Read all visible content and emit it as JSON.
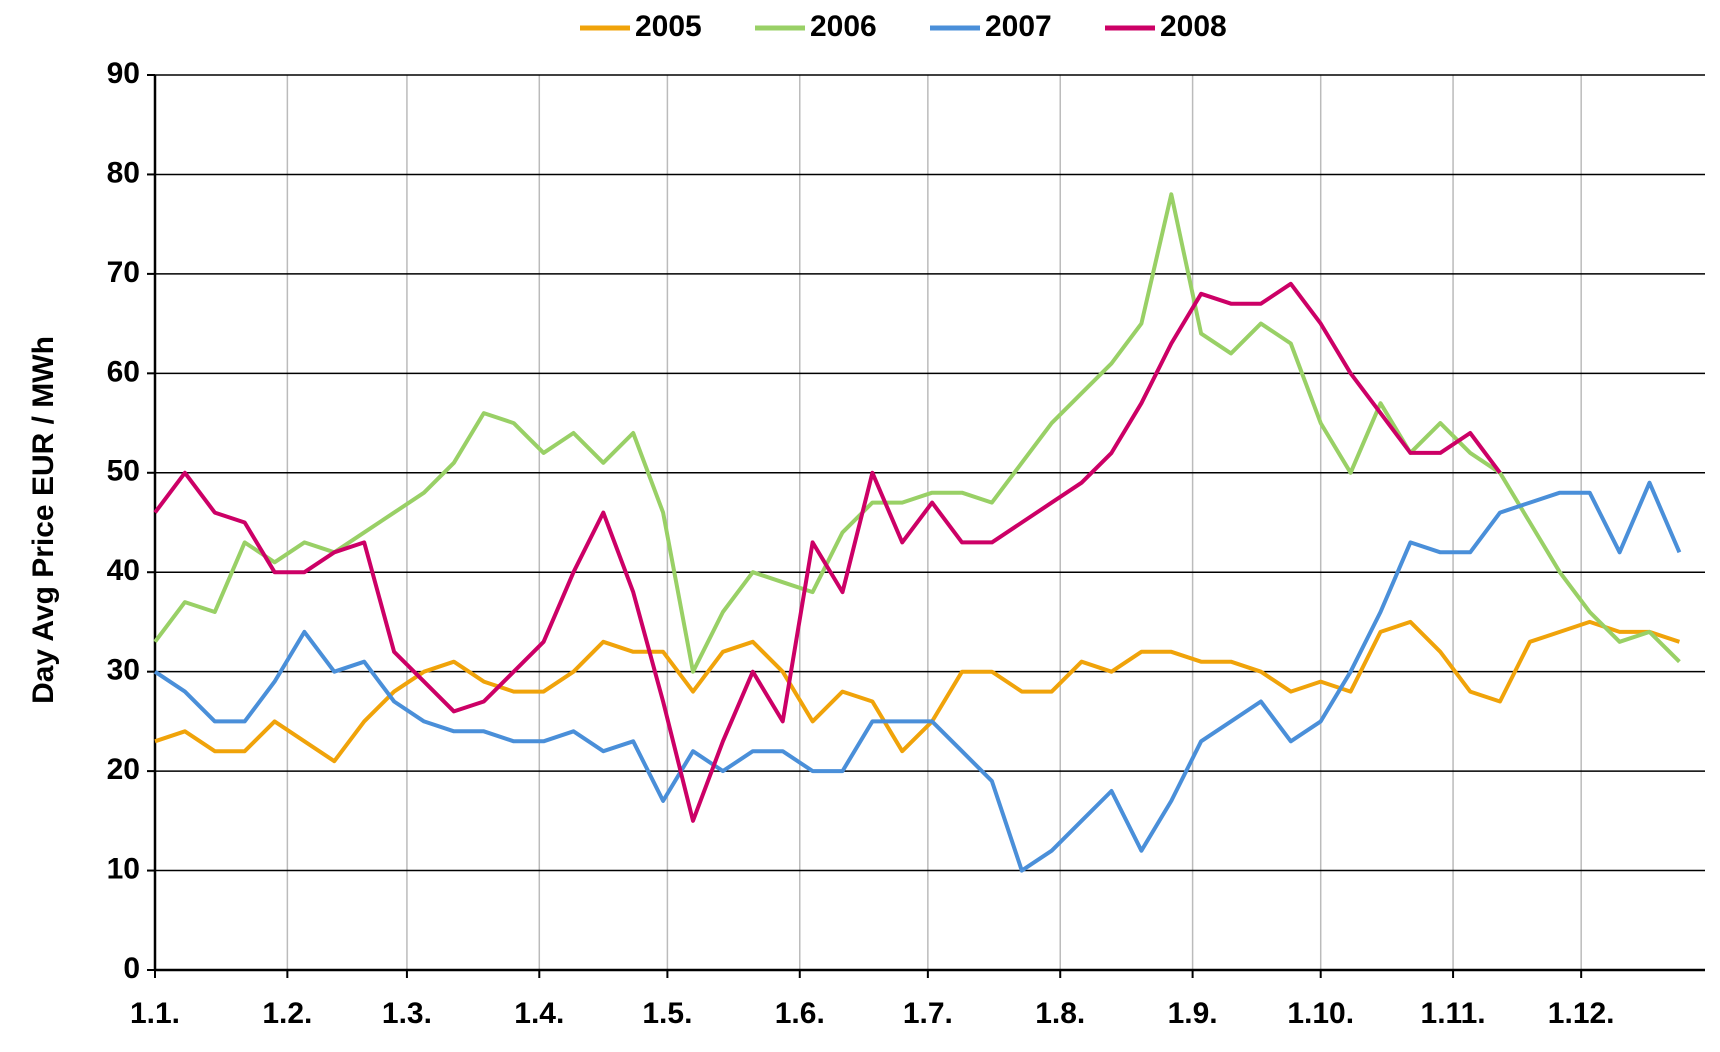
{
  "chart_data": {
    "type": "line",
    "ylabel": "Day Avg Price EUR / MWh",
    "x": [
      0,
      7,
      14,
      21,
      28,
      35,
      42,
      49,
      56,
      63,
      70,
      77,
      84,
      91,
      98,
      105,
      112,
      119,
      126,
      133,
      140,
      147,
      154,
      161,
      168,
      175,
      182,
      189,
      196,
      203,
      210,
      217,
      224,
      231,
      238,
      245,
      252,
      259,
      266,
      273,
      280,
      287,
      294,
      301,
      308,
      315,
      322,
      329,
      336,
      343,
      350,
      357
    ],
    "series": [
      {
        "name": "2005",
        "color": "#f0a30a",
        "values": [
          23,
          24,
          22,
          22,
          25,
          23,
          21,
          25,
          28,
          30,
          31,
          29,
          28,
          28,
          30,
          33,
          32,
          32,
          28,
          32,
          33,
          30,
          25,
          28,
          27,
          22,
          25,
          30,
          30,
          28,
          28,
          31,
          30,
          32,
          32,
          31,
          31,
          30,
          28,
          29,
          28,
          34,
          35,
          32,
          28,
          27,
          33,
          34,
          35,
          34,
          34,
          33
        ]
      },
      {
        "name": "2006",
        "color": "#99d066",
        "values": [
          33,
          37,
          36,
          43,
          41,
          43,
          42,
          44,
          46,
          48,
          51,
          56,
          55,
          52,
          54,
          51,
          54,
          46,
          30,
          36,
          40,
          39,
          38,
          44,
          47,
          47,
          48,
          48,
          47,
          51,
          55,
          58,
          61,
          65,
          78,
          64,
          62,
          65,
          63,
          55,
          50,
          57,
          52,
          55,
          52,
          50,
          45,
          40,
          36,
          33,
          34,
          31
        ]
      },
      {
        "name": "2007",
        "color": "#4a8fd9",
        "values": [
          30,
          28,
          25,
          25,
          29,
          34,
          30,
          31,
          27,
          25,
          24,
          24,
          23,
          23,
          24,
          22,
          23,
          17,
          22,
          20,
          22,
          22,
          20,
          20,
          25,
          25,
          25,
          22,
          19,
          10,
          12,
          15,
          18,
          12,
          17,
          23,
          25,
          27,
          23,
          25,
          30,
          36,
          43,
          42,
          42,
          46,
          47,
          48,
          48,
          42,
          49,
          42
        ]
      },
      {
        "name": "2008",
        "color": "#cc0066",
        "values": [
          46,
          50,
          46,
          45,
          40,
          40,
          42,
          43,
          32,
          29,
          26,
          27,
          30,
          33,
          40,
          46,
          38,
          27,
          15,
          23,
          30,
          25,
          43,
          38,
          50,
          43,
          47,
          43,
          43,
          45,
          47,
          49,
          52,
          57,
          63,
          68,
          67,
          67,
          69,
          65,
          60,
          56,
          52,
          52,
          54,
          50,
          null,
          null,
          null,
          null,
          null,
          null
        ]
      }
    ],
    "xlim": [
      0,
      363
    ],
    "xticks": [
      {
        "value": 0,
        "label": "1.1."
      },
      {
        "value": 31,
        "label": "1.2."
      },
      {
        "value": 59,
        "label": "1.3."
      },
      {
        "value": 90,
        "label": "1.4."
      },
      {
        "value": 120,
        "label": "1.5."
      },
      {
        "value": 151,
        "label": "1.6."
      },
      {
        "value": 181,
        "label": "1.7."
      },
      {
        "value": 212,
        "label": "1.8."
      },
      {
        "value": 243,
        "label": "1.9."
      },
      {
        "value": 273,
        "label": "1.10."
      },
      {
        "value": 304,
        "label": "1.11."
      },
      {
        "value": 334,
        "label": "1.12."
      }
    ],
    "ylim": [
      0,
      90
    ],
    "yticks": [
      0,
      10,
      20,
      30,
      40,
      50,
      60,
      70,
      80,
      90
    ],
    "grid": true,
    "legend": "top"
  }
}
